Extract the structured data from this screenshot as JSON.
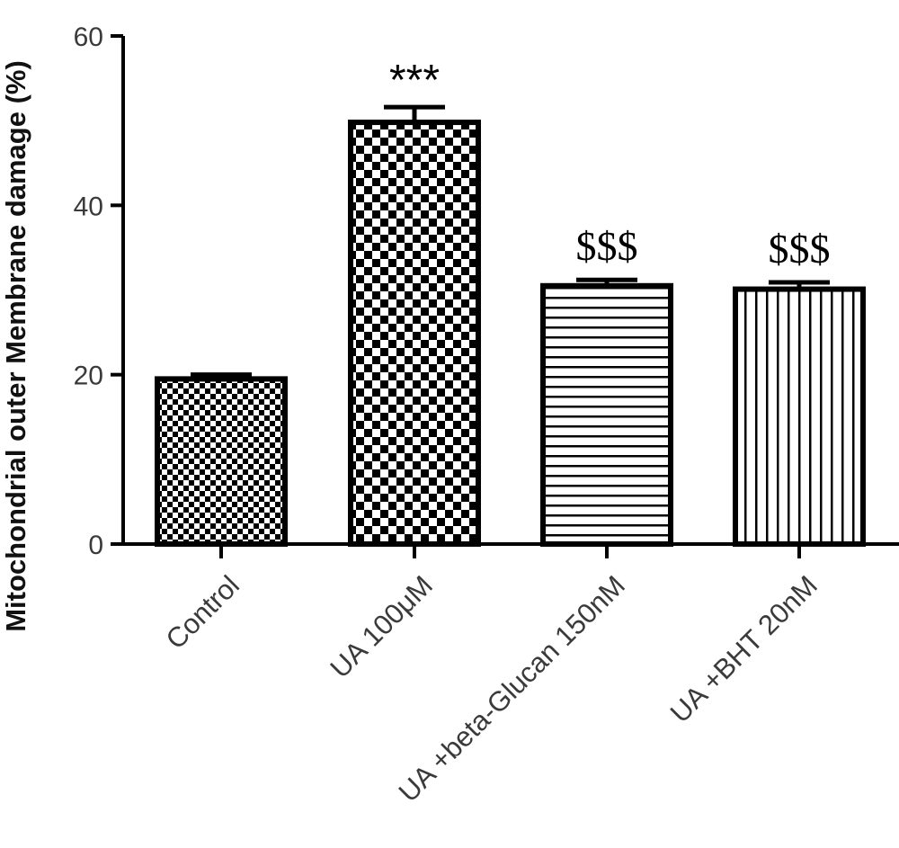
{
  "chart_data": {
    "type": "bar",
    "ylabel": "Mitochondrial outer Membrane damage (%)",
    "xlabel": "",
    "ylim": [
      0,
      60
    ],
    "yticks": [
      0,
      20,
      40,
      60
    ],
    "categories": [
      "Control",
      "UA 100μM",
      "UA +beta-Glucan 150nM",
      "UA +BHT 20nM"
    ],
    "values": [
      19.5,
      49.8,
      30.5,
      30.1
    ],
    "errors": [
      0.5,
      1.8,
      0.7,
      0.8
    ],
    "patterns": [
      "fine-checker",
      "coarse-checker",
      "horizontal-stripes",
      "vertical-stripes"
    ],
    "annotations": [
      "",
      "***",
      "$$$",
      "$$$"
    ],
    "grid": false
  }
}
